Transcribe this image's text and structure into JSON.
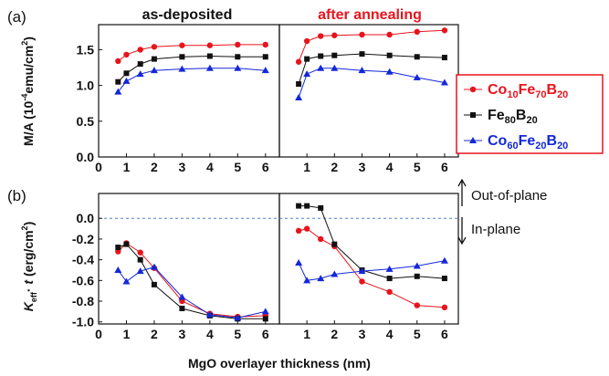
{
  "panel_labels": {
    "a": "(a)",
    "b": "(b)"
  },
  "titles": {
    "left": "as-deposited",
    "right": "after annealing"
  },
  "titles_colors": {
    "left": "#111111",
    "right": "#e8141c"
  },
  "ylabel_top": {
    "pre": "M/A (10",
    "sup": "-4",
    "post": "emu/cm",
    "sup2": "2",
    "close": ")"
  },
  "ylabel_bottom": {
    "k": "K",
    "sub": "eff",
    "dot": "· ",
    "t": "t",
    "post": " (erg/cm",
    "sup": "2",
    "close": ")"
  },
  "xlabel": "MgO overlayer thickness (nm)",
  "annotations": {
    "up": "Out-of-plane",
    "down": "In-plane"
  },
  "legend": [
    {
      "base1": "Co",
      "sub1": "10",
      "base2": "Fe",
      "sub2": "70",
      "base3": "B",
      "sub3": "20",
      "color": "#e8141c",
      "marker": "circle"
    },
    {
      "base1": "Fe",
      "sub1": "80",
      "base2": "B",
      "sub2": "20",
      "base3": "",
      "sub3": "",
      "color": "#111111",
      "marker": "square"
    },
    {
      "base1": "Co",
      "sub1": "60",
      "base2": "Fe",
      "sub2": "20",
      "base3": "B",
      "sub3": "20",
      "color": "#1428d8",
      "marker": "triangle"
    }
  ],
  "chart_data": [
    {
      "type": "line",
      "panel": "a-left",
      "title": "as-deposited",
      "xlabel": "MgO overlayer thickness (nm)",
      "ylabel": "M/A (10-4emu/cm2)",
      "xlim": [
        0,
        6.5
      ],
      "ylim": [
        0,
        1.85
      ],
      "xticks": [
        0,
        1,
        2,
        3,
        4,
        5,
        6
      ],
      "yticks": [
        0.0,
        0.5,
        1.0,
        1.5
      ],
      "series": [
        {
          "name": "Co10Fe70B20",
          "color": "#e8141c",
          "marker": "circle",
          "x": [
            0.7,
            1,
            1.5,
            2,
            3,
            4,
            5,
            6
          ],
          "y": [
            1.34,
            1.43,
            1.5,
            1.54,
            1.56,
            1.56,
            1.57,
            1.57
          ]
        },
        {
          "name": "Fe80B20",
          "color": "#111111",
          "marker": "square",
          "x": [
            0.7,
            1,
            1.5,
            2,
            3,
            4,
            5,
            6
          ],
          "y": [
            1.05,
            1.17,
            1.3,
            1.37,
            1.4,
            1.41,
            1.4,
            1.4
          ]
        },
        {
          "name": "Co60Fe20B20",
          "color": "#1428d8",
          "marker": "triangle",
          "x": [
            0.7,
            1,
            1.5,
            2,
            3,
            4,
            5,
            6
          ],
          "y": [
            0.91,
            1.06,
            1.16,
            1.21,
            1.23,
            1.24,
            1.24,
            1.21
          ]
        }
      ]
    },
    {
      "type": "line",
      "panel": "a-right",
      "title": "after annealing",
      "xlabel": "MgO overlayer thickness (nm)",
      "xlim": [
        0,
        6.5
      ],
      "ylim": [
        0,
        1.85
      ],
      "xticks": [
        0,
        1,
        2,
        3,
        4,
        5,
        6
      ],
      "series": [
        {
          "name": "Co10Fe70B20",
          "color": "#e8141c",
          "marker": "circle",
          "x": [
            0.7,
            1,
            1.5,
            2,
            3,
            4,
            5,
            6
          ],
          "y": [
            1.33,
            1.62,
            1.69,
            1.7,
            1.71,
            1.71,
            1.75,
            1.77
          ]
        },
        {
          "name": "Fe80B20",
          "color": "#111111",
          "marker": "square",
          "x": [
            0.7,
            1,
            1.5,
            2,
            3,
            4,
            5,
            6
          ],
          "y": [
            1.02,
            1.37,
            1.41,
            1.42,
            1.44,
            1.42,
            1.4,
            1.39
          ]
        },
        {
          "name": "Co60Fe20B20",
          "color": "#1428d8",
          "marker": "triangle",
          "x": [
            0.7,
            1,
            1.5,
            2,
            3,
            4,
            5,
            6
          ],
          "y": [
            0.83,
            1.16,
            1.24,
            1.24,
            1.21,
            1.19,
            1.11,
            1.04
          ]
        }
      ]
    },
    {
      "type": "line",
      "panel": "b-left",
      "ylabel": "Keff· t (erg/cm2)",
      "xlabel": "MgO overlayer thickness (nm)",
      "xlim": [
        0,
        6.5
      ],
      "ylim": [
        -1.02,
        0.24
      ],
      "xticks": [
        0,
        1,
        2,
        3,
        4,
        5,
        6
      ],
      "yticks": [
        0.0,
        -0.2,
        -0.4,
        -0.6,
        -0.8,
        -1.0
      ],
      "reference_line": 0.0,
      "series": [
        {
          "name": "Co10Fe70B20",
          "color": "#e8141c",
          "marker": "circle",
          "x": [
            0.7,
            1,
            1.5,
            2,
            3,
            4,
            5,
            6
          ],
          "y": [
            -0.32,
            -0.24,
            -0.33,
            -0.48,
            -0.8,
            -0.92,
            -0.95,
            -0.94
          ]
        },
        {
          "name": "Fe80B20",
          "color": "#111111",
          "marker": "square",
          "x": [
            0.7,
            1,
            1.5,
            2,
            3,
            4,
            5,
            6
          ],
          "y": [
            -0.28,
            -0.25,
            -0.4,
            -0.64,
            -0.87,
            -0.94,
            -0.97,
            -0.97
          ]
        },
        {
          "name": "Co60Fe20B20",
          "color": "#1428d8",
          "marker": "triangle",
          "x": [
            0.7,
            1,
            1.5,
            2,
            3,
            4,
            5,
            6
          ],
          "y": [
            -0.5,
            -0.61,
            -0.51,
            -0.47,
            -0.76,
            -0.93,
            -0.96,
            -0.9
          ]
        }
      ]
    },
    {
      "type": "line",
      "panel": "b-right",
      "xlabel": "MgO overlayer thickness (nm)",
      "xlim": [
        0,
        6.5
      ],
      "ylim": [
        -1.02,
        0.24
      ],
      "xticks": [
        0,
        1,
        2,
        3,
        4,
        5,
        6
      ],
      "reference_line": 0.0,
      "series": [
        {
          "name": "Co10Fe70B20",
          "color": "#e8141c",
          "marker": "circle",
          "x": [
            0.7,
            1,
            1.5,
            2,
            3,
            4,
            5,
            6
          ],
          "y": [
            -0.12,
            -0.1,
            -0.2,
            -0.27,
            -0.61,
            -0.71,
            -0.84,
            -0.86
          ]
        },
        {
          "name": "Fe80B20",
          "color": "#111111",
          "marker": "square",
          "x": [
            0.7,
            1,
            1.5,
            2,
            3,
            4,
            5,
            6
          ],
          "y": [
            0.12,
            0.12,
            0.1,
            -0.25,
            -0.5,
            -0.58,
            -0.56,
            -0.58
          ]
        },
        {
          "name": "Co60Fe20B20",
          "color": "#1428d8",
          "marker": "triangle",
          "x": [
            0.7,
            1,
            1.5,
            2,
            3,
            4,
            5,
            6
          ],
          "y": [
            -0.43,
            -0.6,
            -0.58,
            -0.54,
            -0.51,
            -0.49,
            -0.46,
            -0.41
          ]
        }
      ]
    }
  ]
}
